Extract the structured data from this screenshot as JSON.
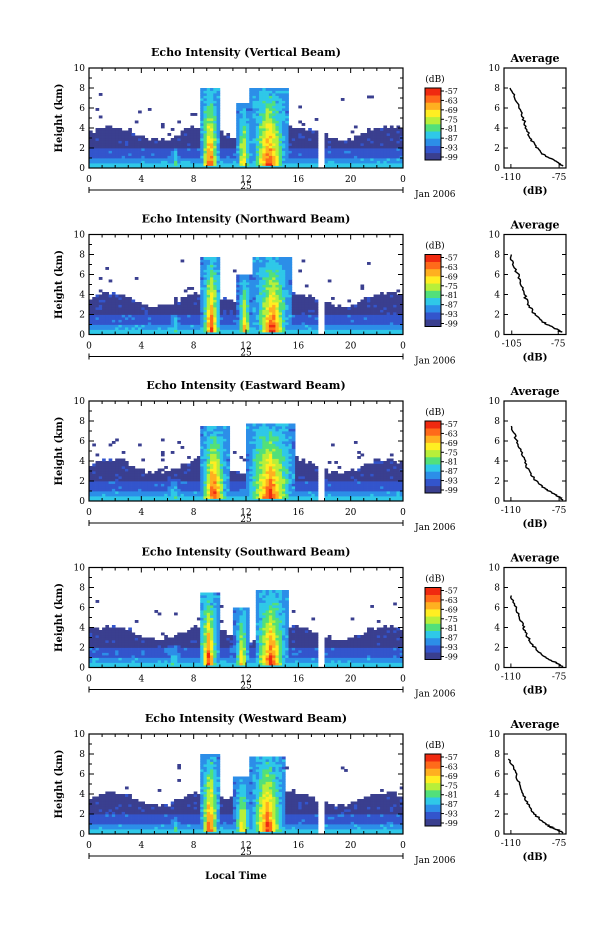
{
  "figure": {
    "bottom_label": "Local Time"
  },
  "chart_data": [
    {
      "type": "heatmap",
      "title": "Echo Intensity (Vertical Beam)",
      "ylabel": "Height (km)",
      "xlim": [
        0,
        24
      ],
      "ylim": [
        0,
        10
      ],
      "xticks": [
        "0",
        "4",
        "8",
        "12",
        "16",
        "20",
        "0"
      ],
      "yticks": [
        "0",
        "2",
        "4",
        "6",
        "8",
        "10"
      ],
      "date_day": "25",
      "date_month": "Jan 2006",
      "colorbar": {
        "unit": "(dB)",
        "ticks": [
          "-57",
          "-63",
          "-69",
          "-75",
          "-81",
          "-87",
          "-93",
          "-99"
        ],
        "colors": [
          "#3a3f8f",
          "#3355cc",
          "#2c8ee8",
          "#2fc8e8",
          "#52e07a",
          "#b8ef3a",
          "#ffee22",
          "#ffb020",
          "#ff6a1a",
          "#f02a10"
        ]
      },
      "average": {
        "title": "Average",
        "xlabel": "(dB)",
        "xticks": [
          "-110",
          "-75"
        ],
        "xlim": [
          -115,
          -70
        ],
        "yticks": [
          "0",
          "2",
          "4",
          "6",
          "8",
          "10"
        ],
        "profile": [
          [
            -110,
            8.0
          ],
          [
            -107,
            7.0
          ],
          [
            -104,
            6.0
          ],
          [
            -101,
            5.0
          ],
          [
            -99,
            4.0
          ],
          [
            -96,
            3.0
          ],
          [
            -92,
            2.2
          ],
          [
            -88,
            1.5
          ],
          [
            -82,
            1.0
          ],
          [
            -76,
            0.6
          ],
          [
            -72,
            0.2
          ]
        ]
      },
      "features": [
        [
          8.6,
          9.9,
          0.2,
          8.0,
          1
        ],
        [
          12.5,
          15.0,
          0.2,
          7.9,
          1
        ],
        [
          11.3,
          12.3,
          0.2,
          6.5,
          0.8
        ],
        [
          6.2,
          7.0,
          0.2,
          2.0,
          0.5
        ]
      ]
    },
    {
      "type": "heatmap",
      "title": "Echo Intensity (Northward Beam)",
      "ylabel": "Height (km)",
      "xlim": [
        0,
        24
      ],
      "ylim": [
        0,
        10
      ],
      "xticks": [
        "0",
        "4",
        "8",
        "12",
        "16",
        "20",
        "0"
      ],
      "yticks": [
        "0",
        "2",
        "4",
        "6",
        "8",
        "10"
      ],
      "date_day": "25",
      "date_month": "Jan 2006",
      "colorbar": {
        "unit": "(dB)",
        "ticks": [
          "-57",
          "-63",
          "-69",
          "-75",
          "-81",
          "-87",
          "-93",
          "-99"
        ],
        "colors": [
          "#3a3f8f",
          "#3355cc",
          "#2c8ee8",
          "#2fc8e8",
          "#52e07a",
          "#b8ef3a",
          "#ffee22",
          "#ffb020",
          "#ff6a1a",
          "#f02a10"
        ]
      },
      "average": {
        "title": "Average",
        "xlabel": "(dB)",
        "xticks": [
          "-105",
          "-75"
        ],
        "xlim": [
          -110,
          -70
        ],
        "yticks": [
          "0",
          "2",
          "4",
          "6",
          "8",
          "10"
        ],
        "profile": [
          [
            -106,
            8.0
          ],
          [
            -104,
            7.0
          ],
          [
            -101,
            6.0
          ],
          [
            -99,
            5.0
          ],
          [
            -97,
            4.0
          ],
          [
            -94,
            3.0
          ],
          [
            -91,
            2.2
          ],
          [
            -87,
            1.5
          ],
          [
            -82,
            1.0
          ],
          [
            -77,
            0.6
          ],
          [
            -73,
            0.2
          ]
        ]
      },
      "features": [
        [
          8.7,
          10.0,
          0.2,
          7.8,
          1
        ],
        [
          12.8,
          15.2,
          0.2,
          7.8,
          1
        ],
        [
          11.4,
          12.4,
          0.2,
          6.0,
          0.8
        ],
        [
          6.2,
          7.0,
          0.2,
          2.0,
          0.5
        ]
      ]
    },
    {
      "type": "heatmap",
      "title": "Echo Intensity (Eastward Beam)",
      "ylabel": "Height (km)",
      "xlim": [
        0,
        24
      ],
      "ylim": [
        0,
        10
      ],
      "xticks": [
        "0",
        "4",
        "8",
        "12",
        "16",
        "20",
        "0"
      ],
      "yticks": [
        "0",
        "2",
        "4",
        "6",
        "8",
        "10"
      ],
      "date_day": "25",
      "date_month": "Jan 2006",
      "colorbar": {
        "unit": "(dB)",
        "ticks": [
          "-57",
          "-63",
          "-69",
          "-75",
          "-81",
          "-87",
          "-93",
          "-99"
        ],
        "colors": [
          "#3a3f8f",
          "#3355cc",
          "#2c8ee8",
          "#2fc8e8",
          "#52e07a",
          "#b8ef3a",
          "#ffee22",
          "#ffb020",
          "#ff6a1a",
          "#f02a10"
        ]
      },
      "average": {
        "title": "Average",
        "xlabel": "(dB)",
        "xticks": [
          "-110",
          "-75"
        ],
        "xlim": [
          -115,
          -70
        ],
        "yticks": [
          "0",
          "2",
          "4",
          "6",
          "8",
          "10"
        ],
        "profile": [
          [
            -110,
            7.5
          ],
          [
            -107,
            6.5
          ],
          [
            -104,
            5.5
          ],
          [
            -101,
            4.5
          ],
          [
            -99,
            3.5
          ],
          [
            -95,
            2.6
          ],
          [
            -91,
            1.9
          ],
          [
            -86,
            1.3
          ],
          [
            -80,
            0.8
          ],
          [
            -75,
            0.4
          ],
          [
            -72,
            0.1
          ]
        ]
      },
      "features": [
        [
          8.6,
          10.5,
          0.2,
          7.5,
          1
        ],
        [
          12.2,
          15.5,
          0.2,
          7.8,
          1
        ],
        [
          6.0,
          7.0,
          0.2,
          2.2,
          0.5
        ]
      ]
    },
    {
      "type": "heatmap",
      "title": "Echo Intensity (Southward Beam)",
      "ylabel": "Height (km)",
      "xlim": [
        0,
        24
      ],
      "ylim": [
        0,
        10
      ],
      "xticks": [
        "0",
        "4",
        "8",
        "12",
        "16",
        "20",
        "0"
      ],
      "yticks": [
        "0",
        "2",
        "4",
        "6",
        "8",
        "10"
      ],
      "date_day": "25",
      "date_month": "Jan 2006",
      "colorbar": {
        "unit": "(dB)",
        "ticks": [
          "-57",
          "-63",
          "-69",
          "-75",
          "-81",
          "-87",
          "-93",
          "-99"
        ],
        "colors": [
          "#3a3f8f",
          "#3355cc",
          "#2c8ee8",
          "#2fc8e8",
          "#52e07a",
          "#b8ef3a",
          "#ffee22",
          "#ffb020",
          "#ff6a1a",
          "#f02a10"
        ]
      },
      "average": {
        "title": "Average",
        "xlabel": "(dB)",
        "xticks": [
          "-110",
          "-75"
        ],
        "xlim": [
          -115,
          -70
        ],
        "yticks": [
          "0",
          "2",
          "4",
          "6",
          "8",
          "10"
        ],
        "profile": [
          [
            -110,
            7.2
          ],
          [
            -107,
            6.2
          ],
          [
            -104,
            5.2
          ],
          [
            -101,
            4.2
          ],
          [
            -99,
            3.4
          ],
          [
            -96,
            2.6
          ],
          [
            -92,
            1.9
          ],
          [
            -87,
            1.2
          ],
          [
            -81,
            0.7
          ],
          [
            -76,
            0.4
          ],
          [
            -72,
            0.1
          ]
        ]
      },
      "features": [
        [
          8.5,
          9.8,
          0.2,
          7.5,
          1
        ],
        [
          12.8,
          15.0,
          0.2,
          7.8,
          1
        ],
        [
          11.2,
          12.2,
          0.2,
          6.0,
          0.8
        ],
        [
          6.0,
          7.0,
          0.2,
          2.2,
          0.5
        ]
      ]
    },
    {
      "type": "heatmap",
      "title": "Echo Intensity (Westward Beam)",
      "ylabel": "Height (km)",
      "xlim": [
        0,
        24
      ],
      "ylim": [
        0,
        10
      ],
      "xticks": [
        "0",
        "4",
        "8",
        "12",
        "16",
        "20",
        "0"
      ],
      "yticks": [
        "0",
        "2",
        "4",
        "6",
        "8",
        "10"
      ],
      "date_day": "25",
      "date_month": "Jan 2006",
      "colorbar": {
        "unit": "(dB)",
        "ticks": [
          "-57",
          "-63",
          "-69",
          "-75",
          "-81",
          "-87",
          "-93",
          "-99"
        ],
        "colors": [
          "#3a3f8f",
          "#3355cc",
          "#2c8ee8",
          "#2fc8e8",
          "#52e07a",
          "#b8ef3a",
          "#ffee22",
          "#ffb020",
          "#ff6a1a",
          "#f02a10"
        ]
      },
      "average": {
        "title": "Average",
        "xlabel": "(dB)",
        "xticks": [
          "-110",
          "-75"
        ],
        "xlim": [
          -115,
          -70
        ],
        "yticks": [
          "0",
          "2",
          "4",
          "6",
          "8",
          "10"
        ],
        "profile": [
          [
            -111,
            7.5
          ],
          [
            -108,
            6.5
          ],
          [
            -105,
            5.5
          ],
          [
            -102,
            4.5
          ],
          [
            -100,
            3.5
          ],
          [
            -96,
            2.6
          ],
          [
            -92,
            1.9
          ],
          [
            -87,
            1.2
          ],
          [
            -81,
            0.7
          ],
          [
            -76,
            0.4
          ],
          [
            -72,
            0.1
          ]
        ]
      },
      "features": [
        [
          8.6,
          9.9,
          0.2,
          8.0,
          1
        ],
        [
          12.5,
          14.8,
          0.2,
          7.8,
          1
        ],
        [
          11.2,
          12.3,
          0.2,
          5.8,
          0.8
        ],
        [
          6.2,
          7.0,
          0.2,
          1.8,
          0.5
        ]
      ]
    }
  ]
}
